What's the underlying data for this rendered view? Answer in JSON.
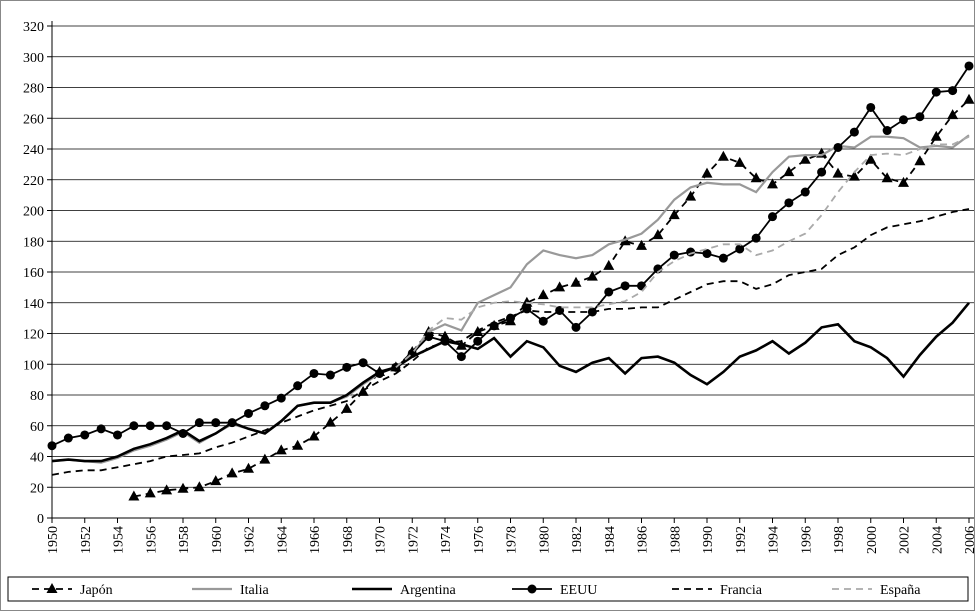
{
  "chart_data": {
    "type": "line",
    "x": [
      1950,
      1951,
      1952,
      1953,
      1954,
      1955,
      1956,
      1957,
      1958,
      1959,
      1960,
      1961,
      1962,
      1963,
      1964,
      1965,
      1966,
      1967,
      1968,
      1969,
      1970,
      1971,
      1972,
      1973,
      1974,
      1975,
      1976,
      1977,
      1978,
      1979,
      1980,
      1981,
      1982,
      1983,
      1984,
      1985,
      1986,
      1987,
      1988,
      1989,
      1990,
      1991,
      1992,
      1993,
      1994,
      1995,
      1996,
      1997,
      1998,
      1999,
      2000,
      2001,
      2002,
      2003,
      2004,
      2005,
      2006
    ],
    "xlim": [
      1950,
      2006
    ],
    "xticks": [
      1950,
      1952,
      1954,
      1956,
      1958,
      1960,
      1962,
      1964,
      1966,
      1968,
      1970,
      1972,
      1974,
      1976,
      1978,
      1980,
      1982,
      1984,
      1986,
      1988,
      1990,
      1992,
      1994,
      1996,
      1998,
      2000,
      2002,
      2004,
      2006
    ],
    "ylim": [
      0,
      320
    ],
    "yticks": [
      0,
      20,
      40,
      60,
      80,
      100,
      120,
      140,
      160,
      180,
      200,
      220,
      240,
      260,
      280,
      300,
      320
    ],
    "grid": true,
    "legend": "bottom",
    "series": [
      {
        "name": "Japón",
        "color": "#000000",
        "dash": "dashed",
        "marker": "triangle",
        "values": [
          null,
          null,
          null,
          null,
          null,
          14,
          16,
          18,
          19,
          20,
          24,
          29,
          32,
          38,
          44,
          47,
          53,
          62,
          71,
          82,
          95,
          98,
          108,
          121,
          118,
          112,
          121,
          125,
          128,
          140,
          145,
          150,
          153,
          157,
          164,
          180,
          177,
          184,
          197,
          209,
          224,
          235,
          231,
          221,
          217,
          225,
          233,
          237,
          224,
          222,
          233,
          221,
          218,
          232,
          248,
          262,
          272
        ]
      },
      {
        "name": "Italia",
        "color": "#999999",
        "dash": "solid",
        "marker": "none",
        "values": [
          37,
          38,
          37,
          36,
          39,
          44,
          47,
          51,
          56,
          49,
          55,
          61,
          58,
          55,
          63,
          73,
          75,
          75,
          79,
          87,
          94,
          98,
          106,
          121,
          126,
          122,
          140,
          145,
          150,
          165,
          174,
          171,
          169,
          171,
          178,
          181,
          185,
          194,
          207,
          215,
          218,
          217,
          217,
          212,
          225,
          235,
          236,
          236,
          242,
          241,
          248,
          248,
          247,
          241,
          242,
          241,
          249
        ]
      },
      {
        "name": "Argentina",
        "color": "#000000",
        "dash": "solid",
        "marker": "none",
        "values": [
          37,
          38,
          37,
          37,
          40,
          45,
          48,
          52,
          57,
          50,
          55,
          62,
          58,
          55,
          63,
          73,
          75,
          75,
          80,
          88,
          95,
          98,
          105,
          110,
          115,
          113,
          110,
          117,
          105,
          115,
          111,
          99,
          95,
          101,
          104,
          94,
          104,
          105,
          101,
          93,
          87,
          95,
          105,
          109,
          115,
          107,
          114,
          124,
          126,
          115,
          111,
          104,
          92,
          106,
          118,
          127,
          140
        ]
      },
      {
        "name": "EEUU",
        "color": "#000000",
        "dash": "solid",
        "marker": "circle",
        "values": [
          47,
          52,
          54,
          58,
          54,
          60,
          60,
          60,
          55,
          62,
          62,
          62,
          68,
          73,
          78,
          86,
          94,
          93,
          98,
          101,
          94,
          98,
          107,
          118,
          115,
          105,
          115,
          125,
          130,
          136,
          128,
          135,
          124,
          134,
          147,
          151,
          151,
          162,
          171,
          173,
          172,
          169,
          175,
          182,
          196,
          205,
          212,
          225,
          241,
          251,
          267,
          252,
          259,
          261,
          277,
          278,
          294
        ]
      },
      {
        "name": "Francia",
        "color": "#000000",
        "dash": "dashed",
        "marker": "none",
        "values": [
          28,
          30,
          31,
          31,
          33,
          35,
          37,
          40,
          41,
          42,
          46,
          49,
          53,
          57,
          62,
          66,
          70,
          73,
          76,
          83,
          89,
          94,
          102,
          111,
          114,
          115,
          122,
          127,
          131,
          135,
          134,
          134,
          134,
          134,
          136,
          136,
          137,
          137,
          142,
          147,
          152,
          154,
          154,
          149,
          152,
          158,
          160,
          162,
          171,
          176,
          184,
          189,
          191,
          193,
          196,
          199,
          201
        ]
      },
      {
        "name": "España",
        "color": "#aaaaaa",
        "dash": "dashed",
        "marker": "none",
        "values": [
          null,
          null,
          null,
          null,
          null,
          null,
          null,
          null,
          null,
          null,
          null,
          null,
          null,
          null,
          null,
          null,
          null,
          null,
          null,
          null,
          null,
          98,
          107,
          122,
          130,
          129,
          137,
          140,
          141,
          140,
          139,
          137,
          137,
          137,
          139,
          141,
          147,
          160,
          167,
          172,
          175,
          178,
          178,
          171,
          174,
          180,
          185,
          197,
          212,
          225,
          236,
          237,
          236,
          240,
          243,
          243,
          248
        ]
      }
    ]
  }
}
